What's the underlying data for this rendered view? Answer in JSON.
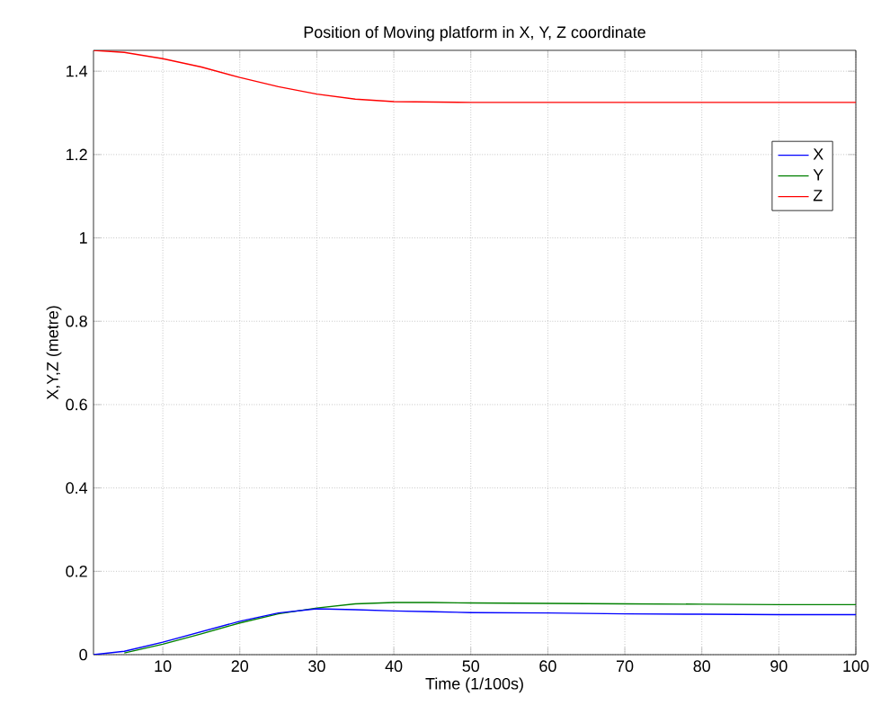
{
  "chart_data": {
    "type": "line",
    "title": "Position of Moving platform in X, Y, Z coordinate",
    "xlabel": "Time (1/100s)",
    "ylabel": "X,Y,Z (metre)",
    "x": [
      1,
      5,
      10,
      15,
      20,
      25,
      30,
      35,
      40,
      45,
      50,
      60,
      70,
      80,
      90,
      100
    ],
    "series": [
      {
        "name": "X",
        "color": "#0000ff",
        "values": [
          0,
          0.008,
          0.03,
          0.055,
          0.08,
          0.1,
          0.11,
          0.108,
          0.105,
          0.103,
          0.101,
          0.1,
          0.098,
          0.097,
          0.096,
          0.096
        ]
      },
      {
        "name": "Y",
        "color": "#008000",
        "values": [
          null,
          0.004,
          0.025,
          0.05,
          0.076,
          0.098,
          0.112,
          0.122,
          0.125,
          0.125,
          0.124,
          0.123,
          0.122,
          0.121,
          0.12,
          0.12
        ]
      },
      {
        "name": "Z",
        "color": "#ff0000",
        "values": [
          1.45,
          1.445,
          1.43,
          1.41,
          1.385,
          1.363,
          1.345,
          1.333,
          1.327,
          1.326,
          1.325,
          1.325,
          1.325,
          1.325,
          1.325,
          1.325
        ]
      }
    ],
    "xlim": [
      1,
      100
    ],
    "ylim": [
      0,
      1.45
    ],
    "xticks": [
      10,
      20,
      30,
      40,
      50,
      60,
      70,
      80,
      90,
      100
    ],
    "yticks": [
      0,
      0.2,
      0.4,
      0.6,
      0.8,
      1,
      1.2,
      1.4
    ],
    "grid": true,
    "legend": "top right",
    "line_style": "solid",
    "marker": "none"
  }
}
